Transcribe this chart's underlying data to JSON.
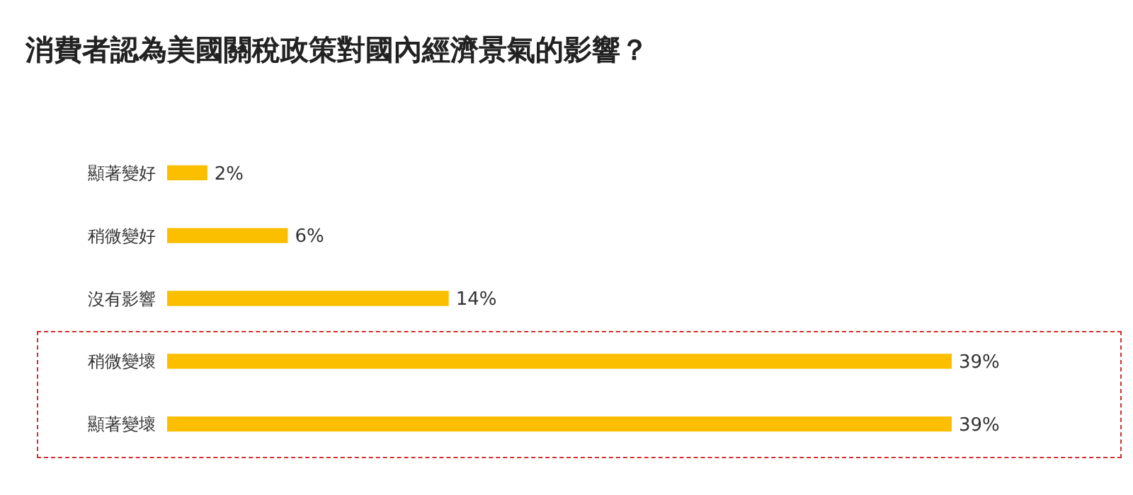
{
  "chart_data": {
    "type": "bar",
    "orientation": "horizontal",
    "title": "消費者認為美國關稅政策對國內經濟景氣的影響？",
    "categories": [
      "顯著變好",
      "稍微變好",
      "沒有影響",
      "稍微變壞",
      "顯著變壞"
    ],
    "values": [
      2,
      6,
      14,
      39,
      39
    ],
    "color": "#fbbf00",
    "value_labels": [
      "2%",
      "6%",
      "14%",
      "39%",
      "39%"
    ]
  }
}
